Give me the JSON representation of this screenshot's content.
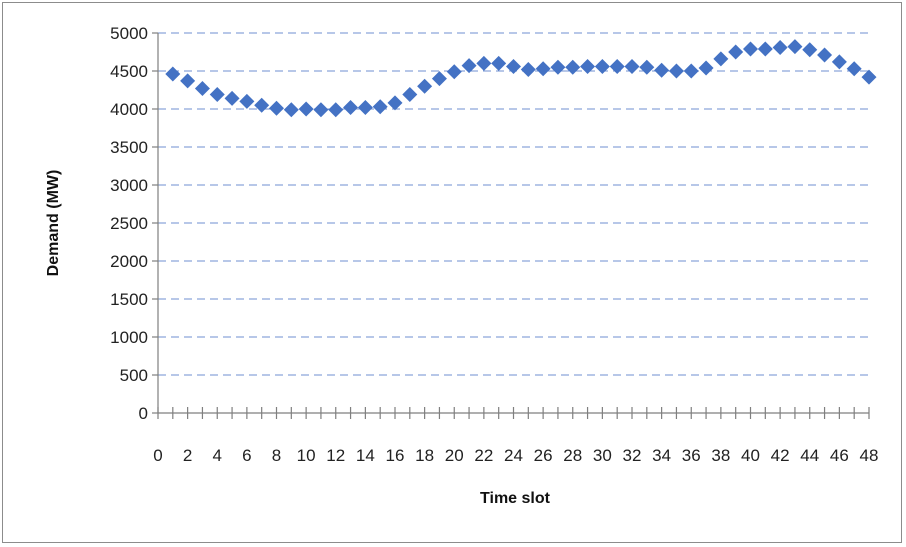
{
  "chart_data": {
    "type": "scatter",
    "title": "",
    "xlabel": "Time slot",
    "ylabel": "Demand (MW)",
    "xlim": [
      0,
      48
    ],
    "ylim": [
      0,
      5000
    ],
    "x_ticks": [
      0,
      2,
      4,
      6,
      8,
      10,
      12,
      14,
      16,
      18,
      20,
      22,
      24,
      26,
      28,
      30,
      32,
      34,
      36,
      38,
      40,
      42,
      44,
      46,
      48
    ],
    "y_ticks": [
      0,
      500,
      1000,
      1500,
      2000,
      2500,
      3000,
      3500,
      4000,
      4500,
      5000
    ],
    "grid": "horizontal dashed",
    "legend": "none",
    "series": [
      {
        "color": "#4472C4",
        "marker": "diamond",
        "x": [
          1,
          2,
          3,
          4,
          5,
          6,
          7,
          8,
          9,
          10,
          11,
          12,
          13,
          14,
          15,
          16,
          17,
          18,
          19,
          20,
          21,
          22,
          23,
          24,
          25,
          26,
          27,
          28,
          29,
          30,
          31,
          32,
          33,
          34,
          35,
          36,
          37,
          38,
          39,
          40,
          41,
          42,
          43,
          44,
          45,
          46,
          47,
          48
        ],
        "y": [
          4460,
          4370,
          4270,
          4190,
          4140,
          4100,
          4050,
          4010,
          3990,
          4000,
          3990,
          3990,
          4020,
          4020,
          4030,
          4080,
          4190,
          4300,
          4400,
          4490,
          4570,
          4600,
          4600,
          4560,
          4520,
          4530,
          4550,
          4550,
          4560,
          4560,
          4560,
          4560,
          4550,
          4510,
          4500,
          4500,
          4540,
          4660,
          4750,
          4790,
          4790,
          4810,
          4820,
          4780,
          4710,
          4620,
          4530,
          4420
        ]
      }
    ]
  }
}
